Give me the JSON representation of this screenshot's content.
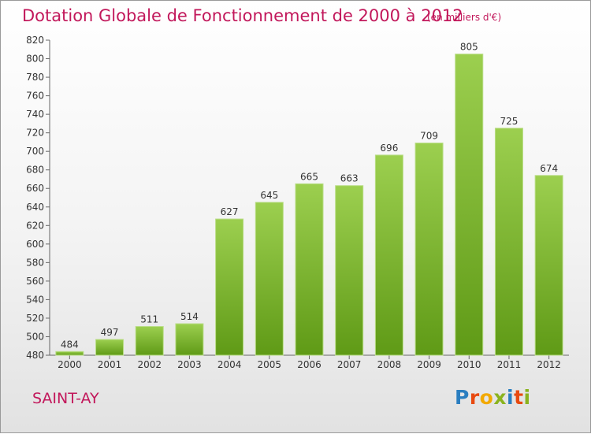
{
  "header": {
    "title": "Dotation Globale de Fonctionnement de 2000 à 2012",
    "unit": "(en milliers d'€)"
  },
  "footer": {
    "commune": "SAINT-AY",
    "logo_text": "Proxiti"
  },
  "colors": {
    "accent": "#c2185b",
    "bar_top": "#9ccf4f",
    "bar_bottom": "#5f9a16",
    "logo_letters": [
      "#2a7ec0",
      "#e84a10",
      "#f2a900",
      "#8ab31e",
      "#2a7ec0",
      "#e84a10",
      "#8ab31e"
    ]
  },
  "chart_data": {
    "type": "bar",
    "title": "Dotation Globale de Fonctionnement de 2000 à 2012",
    "subtitle": "(en milliers d'€)",
    "categories": [
      "2000",
      "2001",
      "2002",
      "2003",
      "2004",
      "2005",
      "2006",
      "2007",
      "2008",
      "2009",
      "2010",
      "2011",
      "2012"
    ],
    "values": [
      484,
      497,
      511,
      514,
      627,
      645,
      665,
      663,
      696,
      709,
      805,
      725,
      674
    ],
    "ylim": [
      480,
      820
    ],
    "yticks": [
      480,
      500,
      520,
      540,
      560,
      580,
      600,
      620,
      640,
      660,
      680,
      700,
      720,
      740,
      760,
      780,
      800,
      820
    ],
    "grid": false,
    "data_labels": true
  }
}
